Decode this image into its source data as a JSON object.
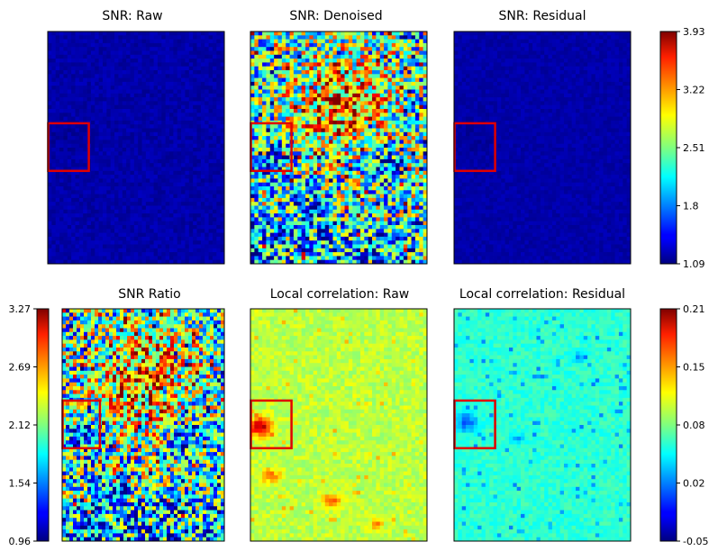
{
  "chart_data": [
    {
      "type": "heatmap",
      "title": "SNR: Raw",
      "colormap": "jet",
      "value_range": [
        1.09,
        3.93
      ],
      "pattern": "uniform-low",
      "base_level": 0.04,
      "variation": 0.025,
      "roi_box": "red rectangle, left-middle region"
    },
    {
      "type": "heatmap",
      "title": "SNR: Denoised",
      "colormap": "jet",
      "value_range": [
        1.09,
        3.93
      ],
      "pattern": "high-center-upper, blue patches, lower band blue",
      "base_level": 0.45,
      "variation": 0.35,
      "roi_box": "red rectangle, left-middle region"
    },
    {
      "type": "heatmap",
      "title": "SNR: Residual",
      "colormap": "jet",
      "value_range": [
        1.09,
        3.93
      ],
      "pattern": "uniform-low",
      "base_level": 0.04,
      "variation": 0.02,
      "roi_box": "red rectangle, left-middle region"
    },
    {
      "type": "heatmap",
      "title": "SNR Ratio",
      "colormap": "jet",
      "value_range": [
        0.96,
        3.27
      ],
      "pattern": "high-center-upper, blue patches, lower band blue",
      "base_level": 0.45,
      "variation": 0.35,
      "roi_box": "red rectangle, left-middle region"
    },
    {
      "type": "heatmap",
      "title": "Local correlation: Raw",
      "colormap": "jet",
      "value_range": [
        -0.05,
        0.21
      ],
      "pattern": "mostly yellow-green, hot spots in ROI and lower area",
      "base_level": 0.56,
      "variation": 0.05,
      "roi_box": "red rectangle, left-middle region"
    },
    {
      "type": "heatmap",
      "title": "Local correlation: Residual",
      "colormap": "jet",
      "value_range": [
        -0.05,
        0.21
      ],
      "pattern": "mostly cyan-green, scattered blue spots",
      "base_level": 0.42,
      "variation": 0.04,
      "roi_box": "red rectangle, left-middle region"
    }
  ],
  "colorbars": [
    {
      "ticks": [
        "3.93",
        "3.22",
        "2.51",
        "1.8",
        "1.09"
      ]
    },
    {
      "ticks": [
        "3.27",
        "2.69",
        "2.12",
        "1.54",
        "0.96"
      ]
    },
    {
      "ticks": [
        "0.21",
        "0.15",
        "0.08",
        "0.02",
        "-0.05"
      ]
    }
  ]
}
